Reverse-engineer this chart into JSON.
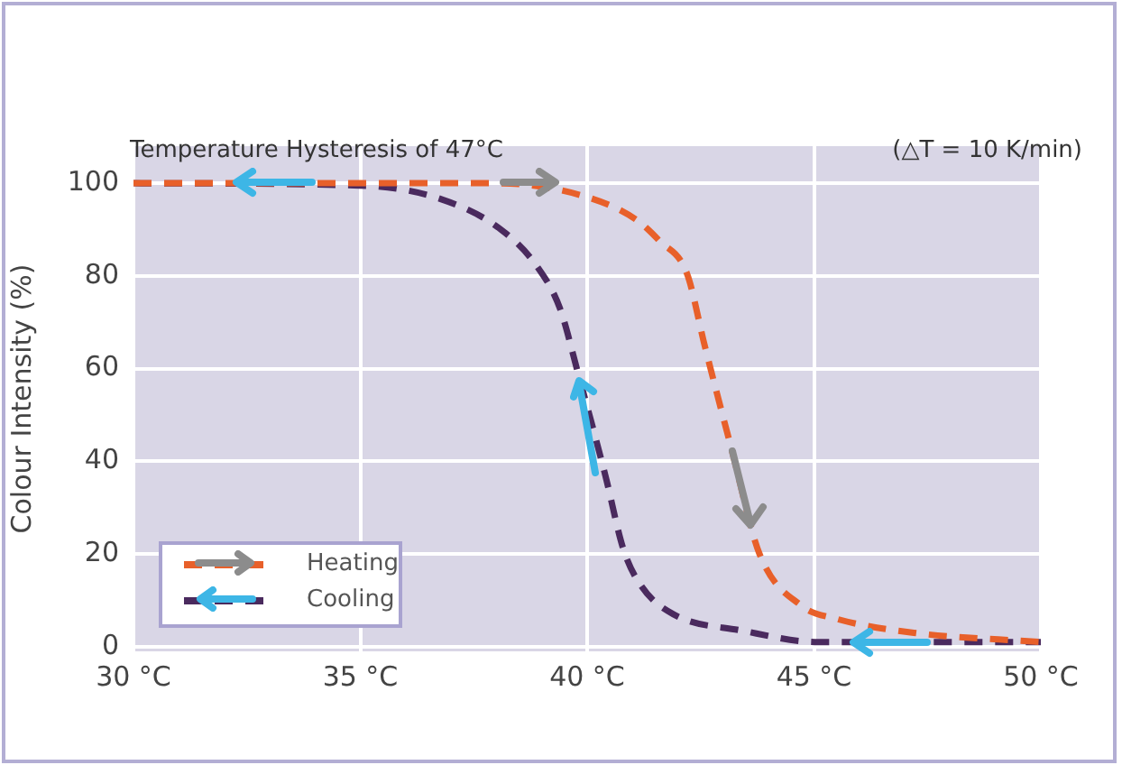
{
  "chart_data": {
    "type": "line",
    "title": "Temperature Hysteresis of 47°C",
    "subtitle": "(△T = 10 K/min)",
    "ylabel": "Colour Intensity (%)",
    "xlim": [
      30,
      50
    ],
    "ylim": [
      -1,
      108
    ],
    "xticks": [
      {
        "value": 30,
        "label": "30 °C"
      },
      {
        "value": 35,
        "label": "35 °C"
      },
      {
        "value": 40,
        "label": "40 °C"
      },
      {
        "value": 45,
        "label": "45 °C"
      },
      {
        "value": 50,
        "label": "50 °C"
      }
    ],
    "yticks": [
      0,
      20,
      40,
      60,
      80,
      100
    ],
    "grid": true,
    "legend": "bottom left",
    "line_style": "dashed",
    "marker": "none",
    "series": [
      {
        "name": "Heating",
        "color": "#e8602a",
        "x": [
          30,
          38,
          40,
          41.1,
          41.6,
          42.2,
          42.6,
          43.2,
          43.8,
          44.7,
          45.5,
          47.2,
          50
        ],
        "values": [
          100,
          100,
          97,
          92,
          87.5,
          80.5,
          64.6,
          42,
          20,
          9,
          6,
          3,
          1
        ]
      },
      {
        "name": "Cooling",
        "color": "#4a2a5e",
        "x": [
          30,
          35,
          36.8,
          38.1,
          38.9,
          39.4,
          39.8,
          40.4,
          40.8,
          41.2,
          41.9,
          43.4,
          45.1,
          50
        ],
        "values": [
          100,
          99.5,
          96.5,
          90,
          82,
          73,
          59,
          37,
          21,
          13,
          7,
          3.5,
          1,
          1
        ]
      }
    ]
  }
}
